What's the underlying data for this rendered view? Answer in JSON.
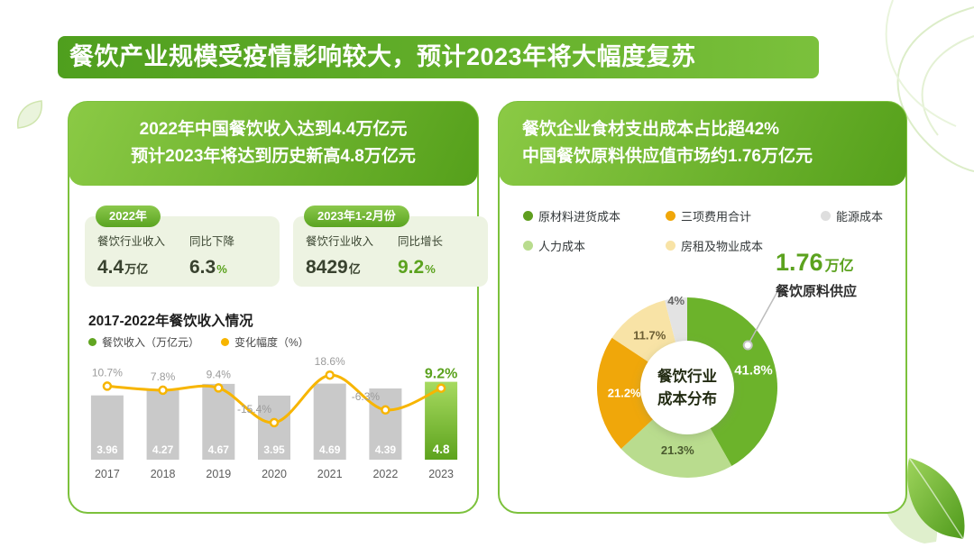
{
  "title": "餐饮产业规模受疫情影响较大，预计2023年将大幅度复苏",
  "colors": {
    "brand_green": "#5ba21e",
    "accent_orange": "#f7b500"
  },
  "left_panel": {
    "header": {
      "line1": "2022年中国餐饮收入达到4.4万亿元",
      "line2": "预计2023年将达到历史新高4.8万亿元"
    },
    "cards": [
      {
        "badge": "2022年",
        "metrics": [
          {
            "label": "餐饮行业收入",
            "value": "4.4",
            "unit": "万亿",
            "value_color": "#39422f",
            "unit_color": "#39422f"
          },
          {
            "label": "同比下降",
            "value": "6.3",
            "unit": "%",
            "value_color": "#39422f",
            "unit_color": "#5ba21e"
          }
        ]
      },
      {
        "badge": "2023年1-2月份",
        "metrics": [
          {
            "label": "餐饮行业收入",
            "value": "8429",
            "unit": "亿",
            "value_color": "#39422f",
            "unit_color": "#39422f"
          },
          {
            "label": "同比增长",
            "value": "9.2",
            "unit": "%",
            "value_color": "#5ba21e",
            "unit_color": "#5ba21e"
          }
        ]
      }
    ],
    "chart_section": {
      "title": "2017-2022年餐饮收入情况",
      "legend": [
        {
          "label": "餐饮收入（万亿元）",
          "color": "#61a521"
        },
        {
          "label": "变化幅度（%）",
          "color": "#f7b500"
        }
      ]
    }
  },
  "right_panel": {
    "header": {
      "line1": "餐饮企业食材支出成本占比超42%",
      "line2": "中国餐饮原料供应值市场约1.76万亿元"
    },
    "legend": [
      {
        "label": "原材料进货成本",
        "color": "#5f9e1f"
      },
      {
        "label": "三项费用合计",
        "color": "#f0a70a"
      },
      {
        "label": "能源成本",
        "color": "#dedede"
      },
      {
        "label": "人力成本",
        "color": "#b9dc8e"
      },
      {
        "label": "房租及物业成本",
        "color": "#f8e3a6"
      }
    ],
    "donut_center": {
      "line1": "餐饮行业",
      "line2": "成本分布"
    },
    "callout": {
      "value": "1.76",
      "unit": "万亿",
      "label": "餐饮原料供应"
    }
  },
  "chart_data": [
    {
      "type": "bar",
      "subtype": "bar-line-combo",
      "title": "2017-2022年餐饮收入情况",
      "categories": [
        "2017",
        "2018",
        "2019",
        "2020",
        "2021",
        "2022",
        "2023"
      ],
      "series": [
        {
          "name": "餐饮收入（万亿元）",
          "kind": "bar",
          "values": [
            3.96,
            4.27,
            4.67,
            3.95,
            4.69,
            4.39,
            4.8
          ]
        },
        {
          "name": "变化幅度（%）",
          "kind": "line",
          "values": [
            10.7,
            7.8,
            9.4,
            -15.4,
            18.6,
            -6.3,
            9.2
          ]
        }
      ],
      "highlight_category": "2023",
      "bar_color": "#c9c9c9",
      "highlight_colors": [
        "#a7da60",
        "#5da31d"
      ],
      "line_color": "#f7b500",
      "legend_position": "top"
    },
    {
      "type": "pie",
      "title": "餐饮行业成本分布",
      "labels": [
        "原材料进货成本",
        "人力成本",
        "三项费用合计",
        "房租及物业成本",
        "能源成本"
      ],
      "values": [
        41.8,
        21.3,
        21.2,
        11.7,
        4
      ],
      "colors": [
        "#6cb32b",
        "#b9dc8e",
        "#f0a70a",
        "#f8e3a6",
        "#e3e3e3"
      ],
      "label_colors": [
        "#ffffff",
        "#4a5a2e",
        "#ffffff",
        "#6b5d33",
        "#666666"
      ],
      "annotation": {
        "value": "1.76万亿",
        "label": "餐饮原料供应"
      }
    }
  ]
}
